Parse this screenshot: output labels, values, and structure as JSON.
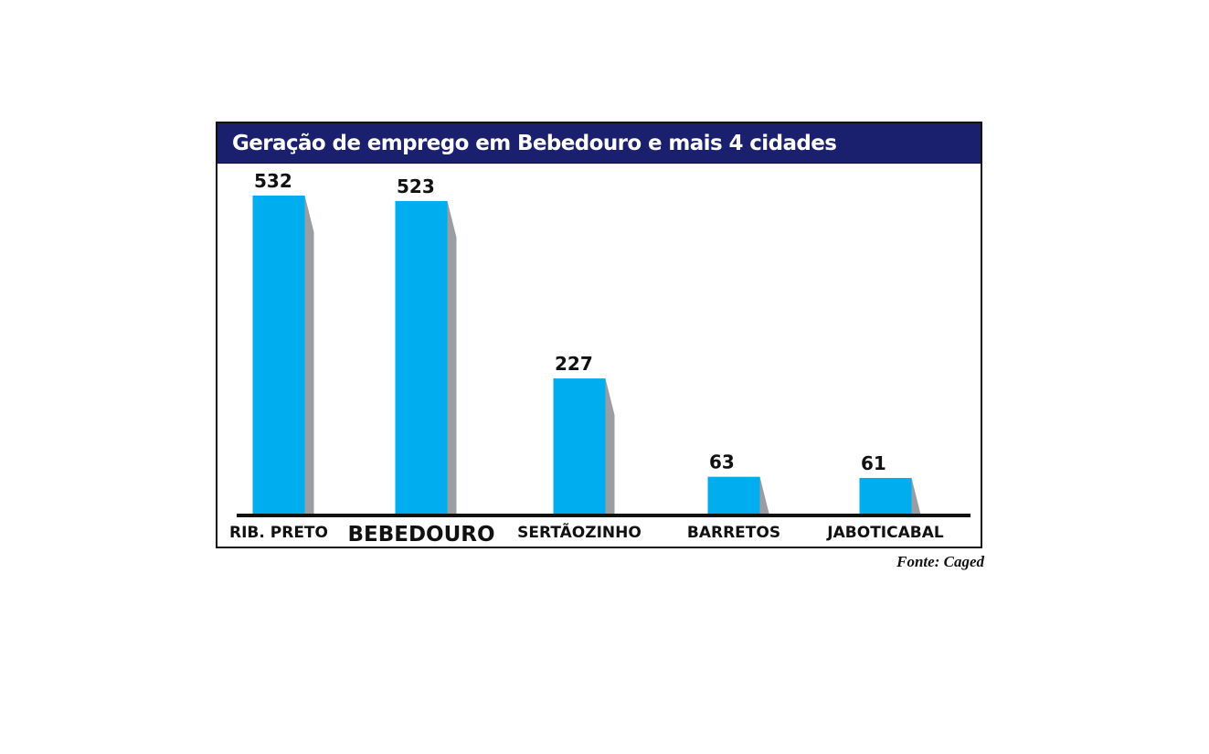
{
  "colors": {
    "title_bg": "#1a1f6e",
    "bar": "#00aeef",
    "bar_shadow": "#9a9da2",
    "axis": "#111111"
  },
  "chart_data": {
    "type": "bar",
    "title": "Geração de emprego em Bebedouro e mais 4 cidades",
    "categories": [
      "RIB. PRETO",
      "BEBEDOURO",
      "SERTÃOZINHO",
      "BARRETOS",
      "JABOTICABAL"
    ],
    "values": [
      532,
      523,
      227,
      63,
      61
    ],
    "highlight": "BEBEDOURO",
    "grid": false,
    "source": "Fonte: Caged"
  }
}
